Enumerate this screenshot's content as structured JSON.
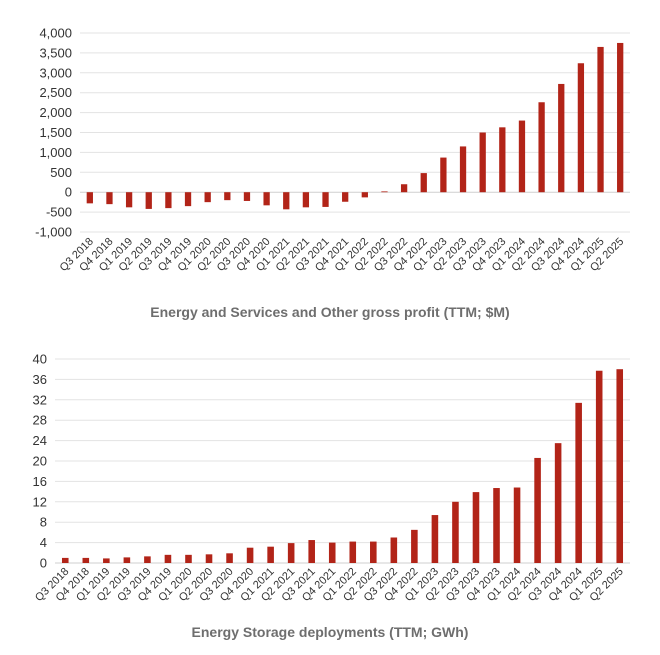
{
  "colors": {
    "bar": "#b22418",
    "grid": "#e3e3e3",
    "title": "#6e6e6e"
  },
  "chart_data": [
    {
      "type": "bar",
      "title": "Energy and Services and Other gross profit (TTM; $M)",
      "xlabel": "",
      "ylabel": "",
      "ylim": [
        -1000,
        4000
      ],
      "yticks": [
        4000,
        3500,
        3000,
        2500,
        2000,
        1500,
        1000,
        500,
        0,
        -500,
        -1000
      ],
      "ytick_labels": [
        "4,000",
        "3,500",
        "3,000",
        "2,500",
        "2,000",
        "1,500",
        "1,000",
        "500",
        "0",
        "-500",
        "-1,000"
      ],
      "grid": true,
      "categories": [
        "Q3 2018",
        "Q4 2018",
        "Q1 2019",
        "Q2 2019",
        "Q3 2019",
        "Q4 2019",
        "Q1 2020",
        "Q2 2020",
        "Q3 2020",
        "Q4 2020",
        "Q1 2021",
        "Q2 2021",
        "Q3 2021",
        "Q4 2021",
        "Q1 2022",
        "Q2 2022",
        "Q3 2022",
        "Q4 2022",
        "Q1 2023",
        "Q2 2023",
        "Q3 2023",
        "Q4 2023",
        "Q1 2024",
        "Q2 2024",
        "Q3 2024",
        "Q4 2024",
        "Q1 2025",
        "Q2 2025"
      ],
      "values": [
        -280,
        -300,
        -380,
        -420,
        -400,
        -350,
        -250,
        -200,
        -220,
        -330,
        -430,
        -380,
        -370,
        -240,
        -130,
        20,
        200,
        480,
        870,
        1150,
        1500,
        1630,
        1800,
        2260,
        2720,
        3240,
        3650,
        3750
      ]
    },
    {
      "type": "bar",
      "title": "Energy Storage deployments (TTM; GWh)",
      "xlabel": "",
      "ylabel": "",
      "ylim": [
        0,
        40
      ],
      "yticks": [
        40,
        36,
        32,
        28,
        24,
        20,
        16,
        12,
        8,
        4,
        0
      ],
      "ytick_labels": [
        "40",
        "36",
        "32",
        "28",
        "24",
        "20",
        "16",
        "12",
        "8",
        "4",
        "0"
      ],
      "grid": true,
      "categories": [
        "Q3 2018",
        "Q4 2018",
        "Q1 2019",
        "Q2 2019",
        "Q3 2019",
        "Q4 2019",
        "Q1 2020",
        "Q2 2020",
        "Q3 2020",
        "Q4 2020",
        "Q1 2021",
        "Q2 2021",
        "Q3 2021",
        "Q4 2021",
        "Q1 2022",
        "Q2 2022",
        "Q3 2022",
        "Q4 2022",
        "Q1 2023",
        "Q2 2023",
        "Q3 2023",
        "Q4 2023",
        "Q1 2024",
        "Q2 2024",
        "Q3 2024",
        "Q4 2024",
        "Q1 2025",
        "Q2 2025"
      ],
      "values": [
        1.0,
        1.0,
        0.9,
        1.1,
        1.3,
        1.6,
        1.6,
        1.7,
        1.9,
        3.0,
        3.2,
        3.9,
        4.5,
        4.0,
        4.2,
        4.2,
        5.0,
        6.5,
        9.4,
        12.0,
        13.9,
        14.7,
        14.8,
        20.6,
        23.5,
        31.4,
        37.7,
        38.0
      ]
    }
  ]
}
